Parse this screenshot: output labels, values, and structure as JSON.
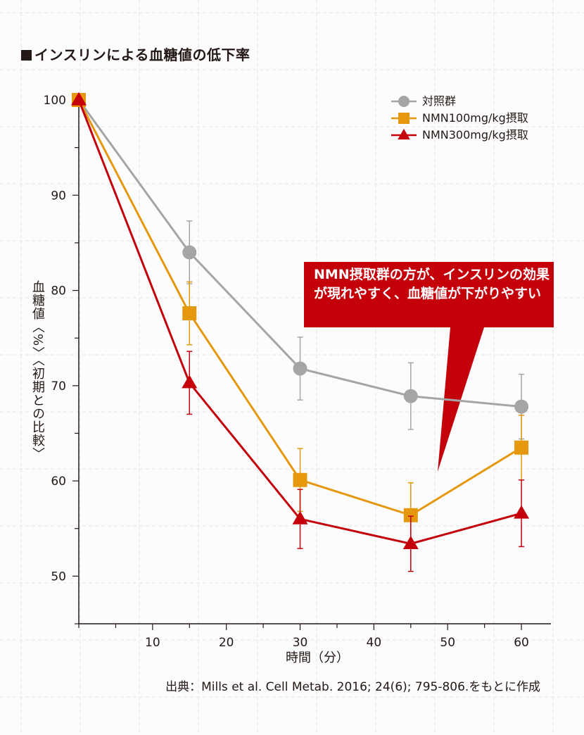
{
  "header": {
    "title": "インスリンによる血糖値の低下率"
  },
  "callout": {
    "text": "NMN摂取群の方が、インスリンの効果が現れやすく、血糖値が下がりやすい"
  },
  "source": "出典：Mills et al. Cell Metab. 2016; 24(6); 795-806.をもとに作成",
  "chart_data": {
    "type": "line",
    "xlabel": "時間（分）",
    "ylabel": "血糖値〈%〉〈初期との比較〉",
    "x": [
      0,
      15,
      30,
      45,
      60
    ],
    "xlim": [
      0,
      64
    ],
    "ylim": [
      45,
      100
    ],
    "xticks": [
      10,
      20,
      30,
      40,
      50,
      60
    ],
    "yticks": [
      50,
      60,
      70,
      80,
      90,
      100
    ],
    "grid": true,
    "legend_position": "top-right",
    "series": [
      {
        "name": "対照群",
        "marker": "circle",
        "color": "#a5a5a5",
        "values": [
          100,
          84,
          71.8,
          68.9,
          67.8
        ],
        "errors": [
          0,
          3.3,
          3.3,
          3.5,
          3.4
        ]
      },
      {
        "name": "NMN100mg/kg摂取",
        "marker": "square",
        "color": "#e5980e",
        "values": [
          100,
          77.6,
          60.1,
          56.4,
          63.5
        ],
        "errors": [
          0,
          3.3,
          3.3,
          3.4,
          3.4
        ]
      },
      {
        "name": "NMN300mg/kg摂取",
        "marker": "triangle",
        "color": "#c4000b",
        "values": [
          100,
          70.3,
          56,
          53.4,
          56.6
        ],
        "errors": [
          0,
          3.3,
          3.1,
          2.9,
          3.5
        ]
      }
    ]
  }
}
